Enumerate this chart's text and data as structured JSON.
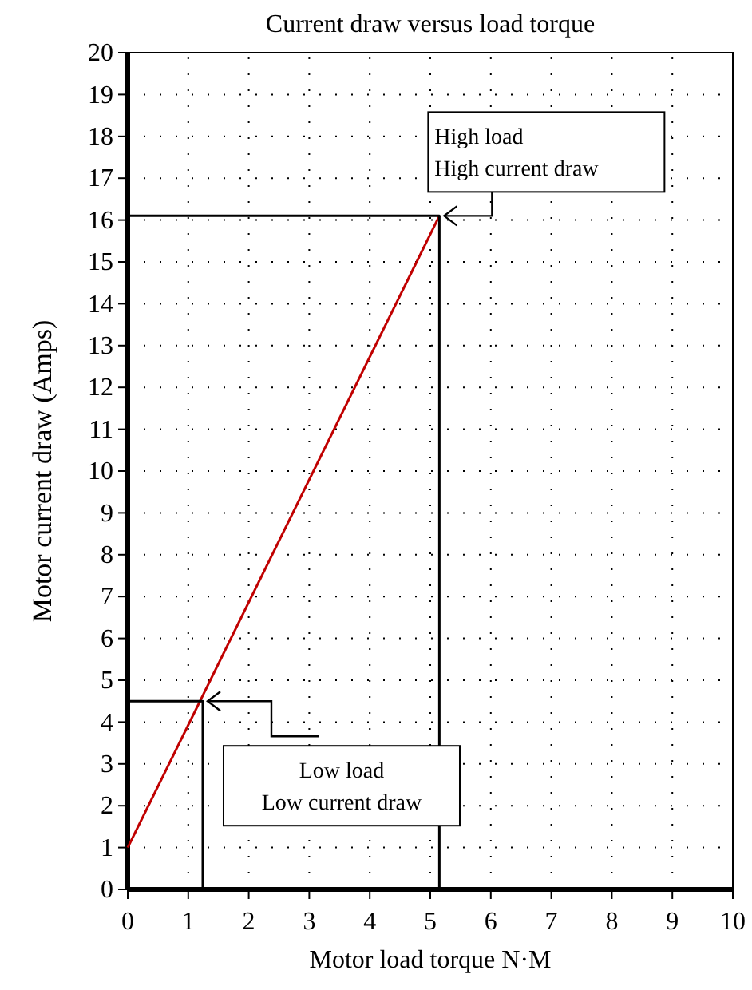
{
  "chart_data": {
    "type": "line",
    "title": "Current draw versus load torque",
    "xlabel": "Motor load torque N·M",
    "ylabel": "Motor current draw (Amps)",
    "xlim": [
      0,
      10
    ],
    "xticks": [
      0,
      1,
      2,
      3,
      4,
      5,
      6,
      7,
      8,
      9,
      10
    ],
    "ylim": [
      0,
      20
    ],
    "yticks": [
      0,
      1,
      2,
      3,
      4,
      5,
      6,
      7,
      8,
      9,
      10,
      11,
      12,
      13,
      14,
      15,
      16,
      17,
      18,
      19,
      20
    ],
    "grid": true,
    "marker": "none",
    "line_style": "solid",
    "series": [
      {
        "color": "#c00000",
        "x": [
          0,
          5.15
        ],
        "values": [
          1,
          16.1
        ]
      },
      {
        "color": "#000000",
        "x": [
          0,
          5.15,
          5.15
        ],
        "values": [
          16.1,
          16.1,
          0
        ]
      },
      {
        "color": "#000000",
        "x": [
          0,
          1.24,
          1.24
        ],
        "values": [
          4.5,
          4.5,
          0
        ]
      }
    ],
    "annotations": [
      {
        "text": "High load\nHigh current draw",
        "x": 5.15,
        "y": 16.1
      },
      {
        "text": "Low load\nLow current draw",
        "x": 1.24,
        "y": 4.5
      }
    ]
  }
}
